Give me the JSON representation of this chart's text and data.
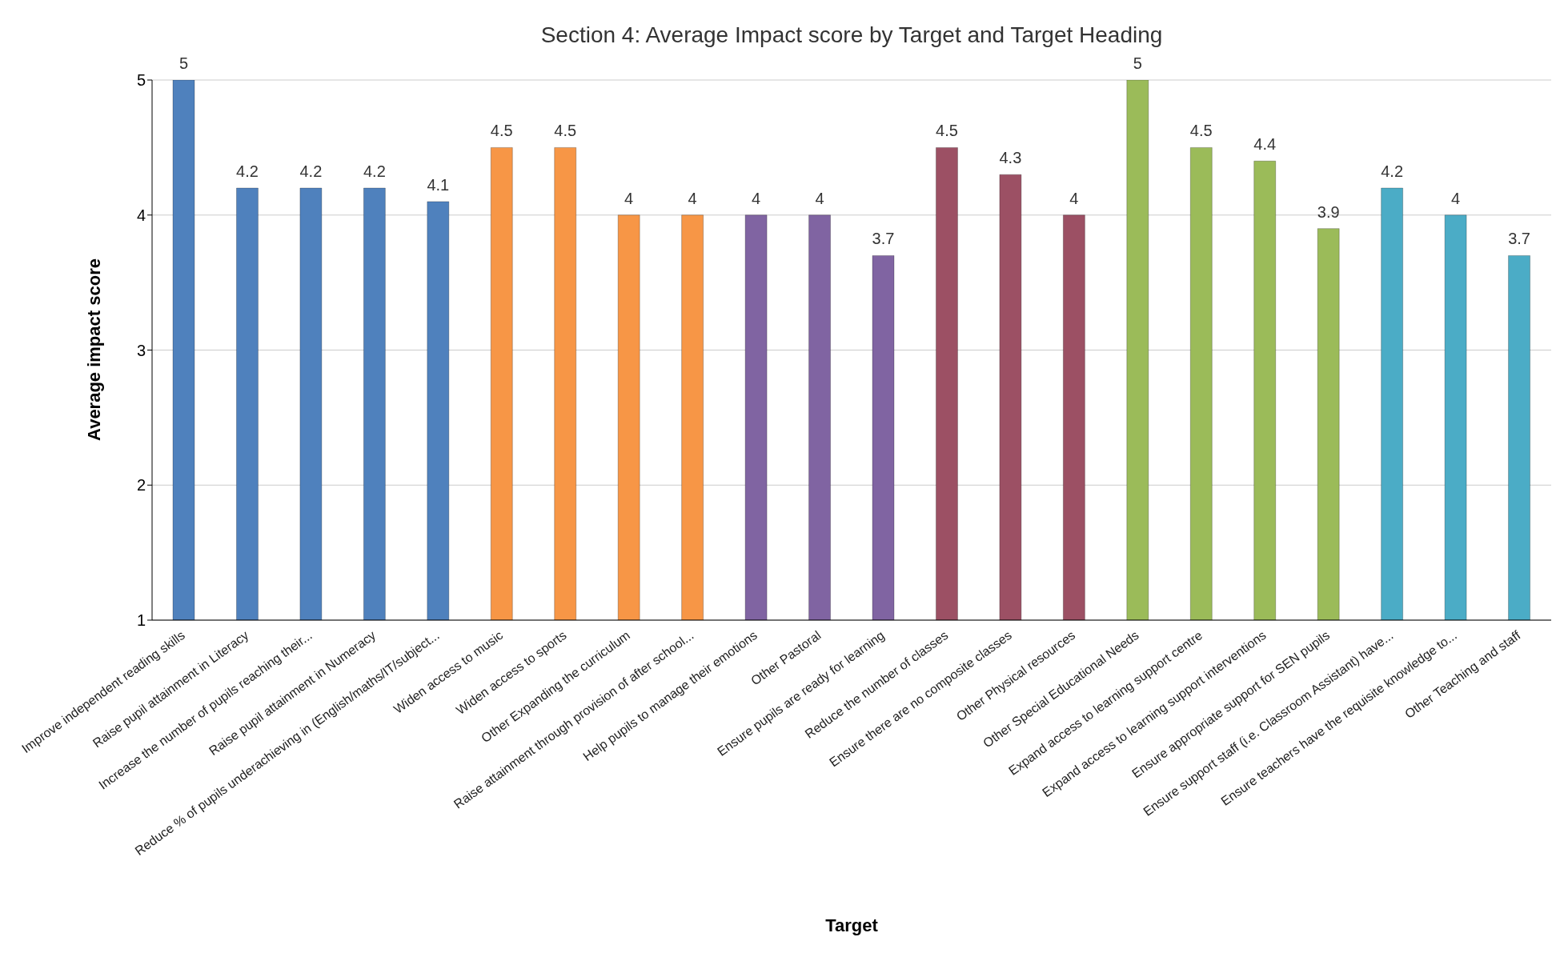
{
  "chart_data": {
    "type": "bar",
    "title": "Section 4: Average Impact score by Target and Target Heading",
    "xlabel": "Target",
    "ylabel": "Average impact score",
    "categories": [
      "Improve independent reading skills",
      "Raise pupil attainment in Literacy",
      "Increase the number of pupils reaching their...",
      "Raise pupil attainment in Numeracy",
      "Reduce % of pupils underachieving in (English/maths/IT/subject...",
      "Widen access to music",
      "Widen access to sports",
      "Other Expanding the curriculum",
      "Raise attainment through provision of after school...",
      "Help pupils to manage their emotions",
      "Other Pastoral",
      "Ensure pupils are ready for learning",
      "Reduce the number of classes",
      "Ensure there are no composite classes",
      "Other Physical resources",
      "Other Special Educational Needs",
      "Expand access to learning support centre",
      "Expand access to learning support interventions",
      "Ensure appropriate support for SEN pupils",
      "Ensure support staff (i.e. Classroom Assistant) have...",
      "Ensure teachers have the requisite knowledge to...",
      "Other Teaching and staff"
    ],
    "values": [
      5,
      4.2,
      4.2,
      4.2,
      4.1,
      4.5,
      4.5,
      4,
      4,
      4,
      4,
      3.7,
      4.5,
      4.3,
      4,
      5,
      4.5,
      4.4,
      3.9,
      4.2,
      4,
      3.7
    ],
    "colors": [
      "#4f81bd",
      "#4f81bd",
      "#4f81bd",
      "#4f81bd",
      "#4f81bd",
      "#f79646",
      "#f79646",
      "#f79646",
      "#f79646",
      "#8064a2",
      "#8064a2",
      "#8064a2",
      "#9c5064",
      "#9c5064",
      "#9c5064",
      "#9bbb59",
      "#9bbb59",
      "#9bbb59",
      "#9bbb59",
      "#4bacc6",
      "#4bacc6",
      "#4bacc6"
    ],
    "ylim": [
      1,
      5
    ],
    "yticks": [
      1,
      2,
      3,
      4,
      5
    ],
    "grid": "y",
    "data_labels": true,
    "legend": false
  }
}
